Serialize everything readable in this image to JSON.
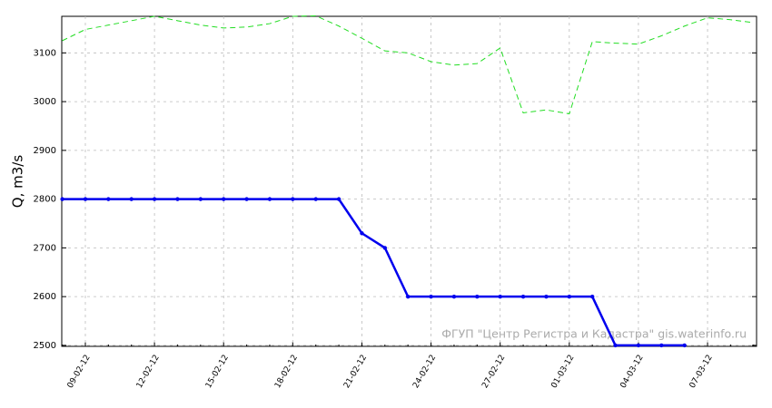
{
  "chart_data": {
    "type": "line",
    "y_label": "Q, m3/s",
    "annotation": "ФГУП \"Центр Регистра и Кадастра\"   gis.waterinfo.ru",
    "categories": [
      null,
      "09-02-12",
      null,
      null,
      "12-02-12",
      null,
      null,
      "15-02-12",
      null,
      null,
      "18-02-12",
      null,
      null,
      "21-02-12",
      null,
      null,
      "24-02-12",
      null,
      null,
      "27-02-12",
      null,
      null,
      "01-03-12",
      null,
      null,
      "04-03-12",
      null,
      null,
      "07-03-12",
      null,
      null
    ],
    "series": [
      {
        "color": "#0000ee",
        "style": "solid",
        "markers": true,
        "values": [
          2800,
          2800,
          2800,
          2800,
          2800,
          2800,
          2800,
          2800,
          2800,
          2800,
          2800,
          2800,
          2800,
          2730,
          2700,
          2600,
          2600,
          2600,
          2600,
          2600,
          2600,
          2600,
          2600,
          2600,
          2500,
          2500,
          2500,
          2500,
          null,
          null,
          null
        ]
      },
      {
        "color": "#22dd22",
        "style": "dashed",
        "markers": false,
        "values": [
          3125,
          3148,
          3157,
          3166,
          3175,
          3166,
          3157,
          3151,
          3153,
          3160,
          3175,
          3176,
          3155,
          3130,
          3104,
          3100,
          3082,
          3075,
          3078,
          3110,
          2977,
          2983,
          2975,
          3123,
          3120,
          3118,
          3135,
          3155,
          3172,
          3168,
          3162
        ]
      }
    ],
    "ylim": [
      2498,
      3175
    ],
    "yticks": [
      2500,
      2600,
      2700,
      2800,
      2900,
      3000,
      3100
    ],
    "grid": true
  }
}
